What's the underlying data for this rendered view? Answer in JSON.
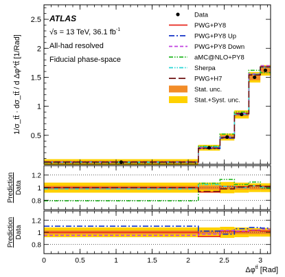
{
  "chart_data": [
    {
      "type": "line",
      "panel": "main",
      "experiment": "ATLAS",
      "energy_label": "√s = 13 TeV, 36.1 fb",
      "lumi_superscript": "-1",
      "channel": "All-had resolved",
      "phase_space": "Fiducial phase-space",
      "ylabel": "1/σ_tt̄ · dσ_tt̄ / d Δφ^tt̄ [1/Rad]",
      "ylim": [
        0,
        2.75
      ],
      "y_ticks": [
        "0.5",
        "1",
        "1.5",
        "2",
        "2.5"
      ],
      "xlim": [
        0,
        3.1416
      ],
      "bin_edges": [
        0,
        2.14,
        2.44,
        2.64,
        2.84,
        3.0,
        3.1416
      ],
      "data_x": [
        1.07,
        2.29,
        2.54,
        2.74,
        2.92,
        3.07
      ],
      "data_y": [
        0.038,
        0.285,
        0.47,
        0.86,
        1.5,
        1.62
      ],
      "stat_unc": [
        0.02,
        0.02,
        0.03,
        0.03,
        0.05,
        0.05
      ],
      "syst_unc": [
        0.05,
        0.05,
        0.06,
        0.07,
        0.09,
        0.09
      ],
      "series": [
        {
          "name": "PWG+PY8",
          "color": "#e8251b",
          "style": "solid",
          "values": [
            0.038,
            0.28,
            0.46,
            0.87,
            1.55,
            1.68
          ]
        },
        {
          "name": "PWG+PY8 Up",
          "color": "#1030c8",
          "style": "dashdot",
          "values": [
            0.04,
            0.27,
            0.45,
            0.86,
            1.55,
            1.68
          ]
        },
        {
          "name": "PWG+PY8 Down",
          "color": "#c040e0",
          "style": "dashed",
          "values": [
            0.037,
            0.29,
            0.47,
            0.88,
            1.56,
            1.7
          ]
        },
        {
          "name": "aMC@NLO+PY8",
          "color": "#22b822",
          "style": "dashdotdot",
          "values": [
            0.03,
            0.31,
            0.52,
            0.9,
            1.62,
            1.58
          ]
        },
        {
          "name": "Sherpa",
          "color": "#26d6d6",
          "style": "dashdotdot",
          "values": [
            0.037,
            0.3,
            0.47,
            0.86,
            1.55,
            1.67
          ]
        },
        {
          "name": "PWG+H7",
          "color": "#6b0f0f",
          "style": "longdash",
          "values": [
            0.038,
            0.28,
            0.46,
            0.87,
            1.54,
            1.68
          ]
        }
      ],
      "legend": {
        "data": "Data",
        "stat": "Stat. unc.",
        "statsyst": "Stat.+Syst. unc.",
        "stat_color": "#f28c28",
        "statsyst_color": "#ffd100"
      }
    },
    {
      "type": "line",
      "panel": "ratio-1",
      "ylabel_top": "Prediction",
      "ylabel_bottom": "Data",
      "ylim": [
        0.65,
        1.35
      ],
      "y_ticks": [
        "0.8",
        "1",
        "1.2"
      ],
      "dotted_lines": [
        0.8,
        1.0,
        1.2
      ],
      "stat_band": [
        0.03,
        0.03,
        0.03,
        0.03,
        0.03,
        0.03
      ],
      "statsyst_band": [
        0.08,
        0.08,
        0.09,
        0.08,
        0.07,
        0.07
      ],
      "series": [
        {
          "name": "PWG+PY8",
          "color": "#e8251b",
          "style": "solid",
          "values": [
            1.0,
            0.93,
            1.02,
            1.01,
            1.03,
            1.02
          ]
        },
        {
          "name": "aMC@NLO+PY8",
          "color": "#22b822",
          "style": "dashdotdot",
          "values": [
            0.79,
            1.07,
            1.13,
            1.05,
            1.09,
            0.99
          ]
        },
        {
          "name": "Sherpa",
          "color": "#26d6d6",
          "style": "dashdotdot",
          "values": [
            0.98,
            1.05,
            1.02,
            1.0,
            1.03,
            1.01
          ]
        },
        {
          "name": "PWG+H7",
          "color": "#6b0f0f",
          "style": "longdash",
          "values": [
            1.0,
            0.94,
            0.98,
            1.01,
            1.03,
            1.02
          ]
        }
      ]
    },
    {
      "type": "line",
      "panel": "ratio-2",
      "ylabel_top": "Prediction",
      "ylabel_bottom": "Data",
      "ylim": [
        0.65,
        1.35
      ],
      "y_ticks": [
        "0.8",
        "1",
        "1.2"
      ],
      "dotted_lines": [
        0.8,
        1.0,
        1.2
      ],
      "stat_band": [
        0.03,
        0.03,
        0.03,
        0.03,
        0.03,
        0.03
      ],
      "statsyst_band": [
        0.08,
        0.08,
        0.09,
        0.08,
        0.07,
        0.07
      ],
      "series": [
        {
          "name": "PWG+PY8",
          "color": "#e8251b",
          "style": "solid",
          "values": [
            1.0,
            0.93,
            1.02,
            1.01,
            1.03,
            1.02
          ]
        },
        {
          "name": "PWG+PY8 Up",
          "color": "#1030c8",
          "style": "dashdot",
          "values": [
            1.1,
            1.02,
            0.97,
            1.06,
            1.08,
            1.07
          ]
        },
        {
          "name": "PWG+PY8 Down",
          "color": "#c040e0",
          "style": "dashed",
          "values": [
            0.95,
            0.97,
            1.03,
            1.02,
            1.04,
            1.05
          ]
        }
      ]
    }
  ],
  "x_axis": {
    "ticks": [
      "0",
      "0.5",
      "1",
      "1.5",
      "2",
      "2.5",
      "3"
    ],
    "tick_values": [
      0,
      0.5,
      1,
      1.5,
      2,
      2.5,
      3
    ],
    "label": "Δφ",
    "label_sup": "tt̄",
    "label_unit": "[Rad]"
  }
}
